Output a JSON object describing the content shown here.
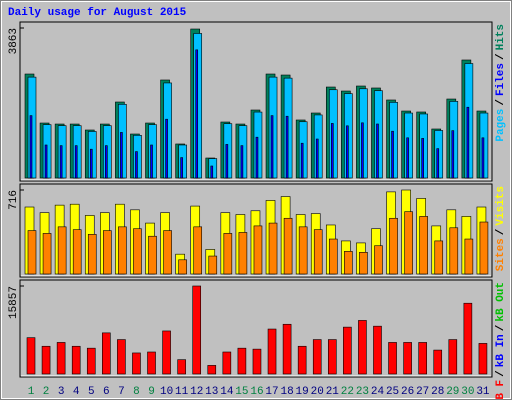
{
  "chart_data": [
    {
      "type": "bar",
      "title": "Daily usage for August 2015",
      "title_color": "#0000ff",
      "legend_separator": "/",
      "categories": [
        "1",
        "2",
        "3",
        "4",
        "5",
        "6",
        "7",
        "8",
        "9",
        "10",
        "11",
        "12",
        "13",
        "14",
        "15",
        "16",
        "17",
        "18",
        "19",
        "20",
        "21",
        "22",
        "23",
        "24",
        "25",
        "26",
        "27",
        "28",
        "29",
        "30",
        "31"
      ],
      "category_colors": [
        "#008040",
        "#008040",
        "#000080",
        "#000080",
        "#000080",
        "#000080",
        "#000080",
        "#008040",
        "#008040",
        "#000080",
        "#000080",
        "#000080",
        "#000080",
        "#000080",
        "#008040",
        "#008040",
        "#000080",
        "#000080",
        "#000080",
        "#000080",
        "#000080",
        "#008040",
        "#008040",
        "#000080",
        "#000080",
        "#000080",
        "#000080",
        "#000080",
        "#008040",
        "#008040",
        "#000080"
      ],
      "ylim": [
        0,
        3863
      ],
      "yticks": [
        3863
      ],
      "series": [
        {
          "name": "Hits",
          "color": "#00805c",
          "values": [
            2678,
            1416,
            1390,
            1390,
            1236,
            1390,
            1957,
            1133,
            1416,
            2524,
            876,
            3837,
            515,
            1442,
            1390,
            1751,
            2678,
            2652,
            1494,
            1674,
            2343,
            2240,
            2369,
            2318,
            2009,
            1725,
            1700,
            1262,
            2034,
            3039,
            1725
          ]
        },
        {
          "name": "Files",
          "color": "#0000ff",
          "values": [
            1607,
            850,
            834,
            834,
            742,
            834,
            1174,
            680,
            850,
            1514,
            526,
            3300,
            309,
            865,
            834,
            1051,
            1607,
            1591,
            896,
            1004,
            1406,
            1344,
            1421,
            1391,
            1205,
            1035,
            1020,
            757,
            1220,
            1823,
            1035
          ]
        },
        {
          "name": "Pages",
          "color": "#00c0ff",
          "values": [
            2598,
            1374,
            1348,
            1348,
            1199,
            1348,
            1898,
            1099,
            1374,
            2448,
            850,
            3722,
            500,
            1399,
            1348,
            1698,
            2598,
            2572,
            1449,
            1624,
            2273,
            2173,
            2298,
            2248,
            1949,
            1673,
            1649,
            1224,
            1973,
            2948,
            1673
          ]
        }
      ]
    },
    {
      "type": "bar",
      "ylim": [
        0,
        716
      ],
      "yticks": [
        716
      ],
      "series": [
        {
          "name": "Visits",
          "color": "#ffff00",
          "values": [
            571,
            523,
            587,
            595,
            499,
            523,
            595,
            547,
            434,
            523,
            169,
            579,
            209,
            523,
            507,
            539,
            627,
            660,
            507,
            515,
            418,
            282,
            265,
            386,
            700,
            716,
            644,
            410,
            547,
            491,
            571
          ]
        },
        {
          "name": "Sites",
          "color": "#ff8000",
          "values": [
            370,
            346,
            402,
            378,
            338,
            370,
            402,
            386,
            322,
            370,
            121,
            402,
            153,
            346,
            354,
            410,
            434,
            475,
            402,
            378,
            298,
            193,
            185,
            241,
            475,
            531,
            491,
            282,
            394,
            298,
            443
          ]
        }
      ]
    },
    {
      "type": "bar",
      "ylim": [
        0,
        15857
      ],
      "yticks": [
        15857
      ],
      "series": [
        {
          "name": "kB F",
          "color": "#ff0000",
          "values": [
            6549,
            5000,
            5688,
            5000,
            4654,
            7411,
            6205,
            3792,
            3964,
            7756,
            2585,
            15857,
            1551,
            3964,
            4654,
            4481,
            8101,
            8963,
            5000,
            6205,
            6205,
            8446,
            9652,
            8618,
            5688,
            5688,
            5688,
            4309,
            6205,
            12755,
            5515
          ]
        }
      ],
      "extra_legend": [
        {
          "name": "kB In",
          "color": "#0000ff"
        },
        {
          "name": "kB Out",
          "color": "#00c000"
        }
      ]
    }
  ]
}
